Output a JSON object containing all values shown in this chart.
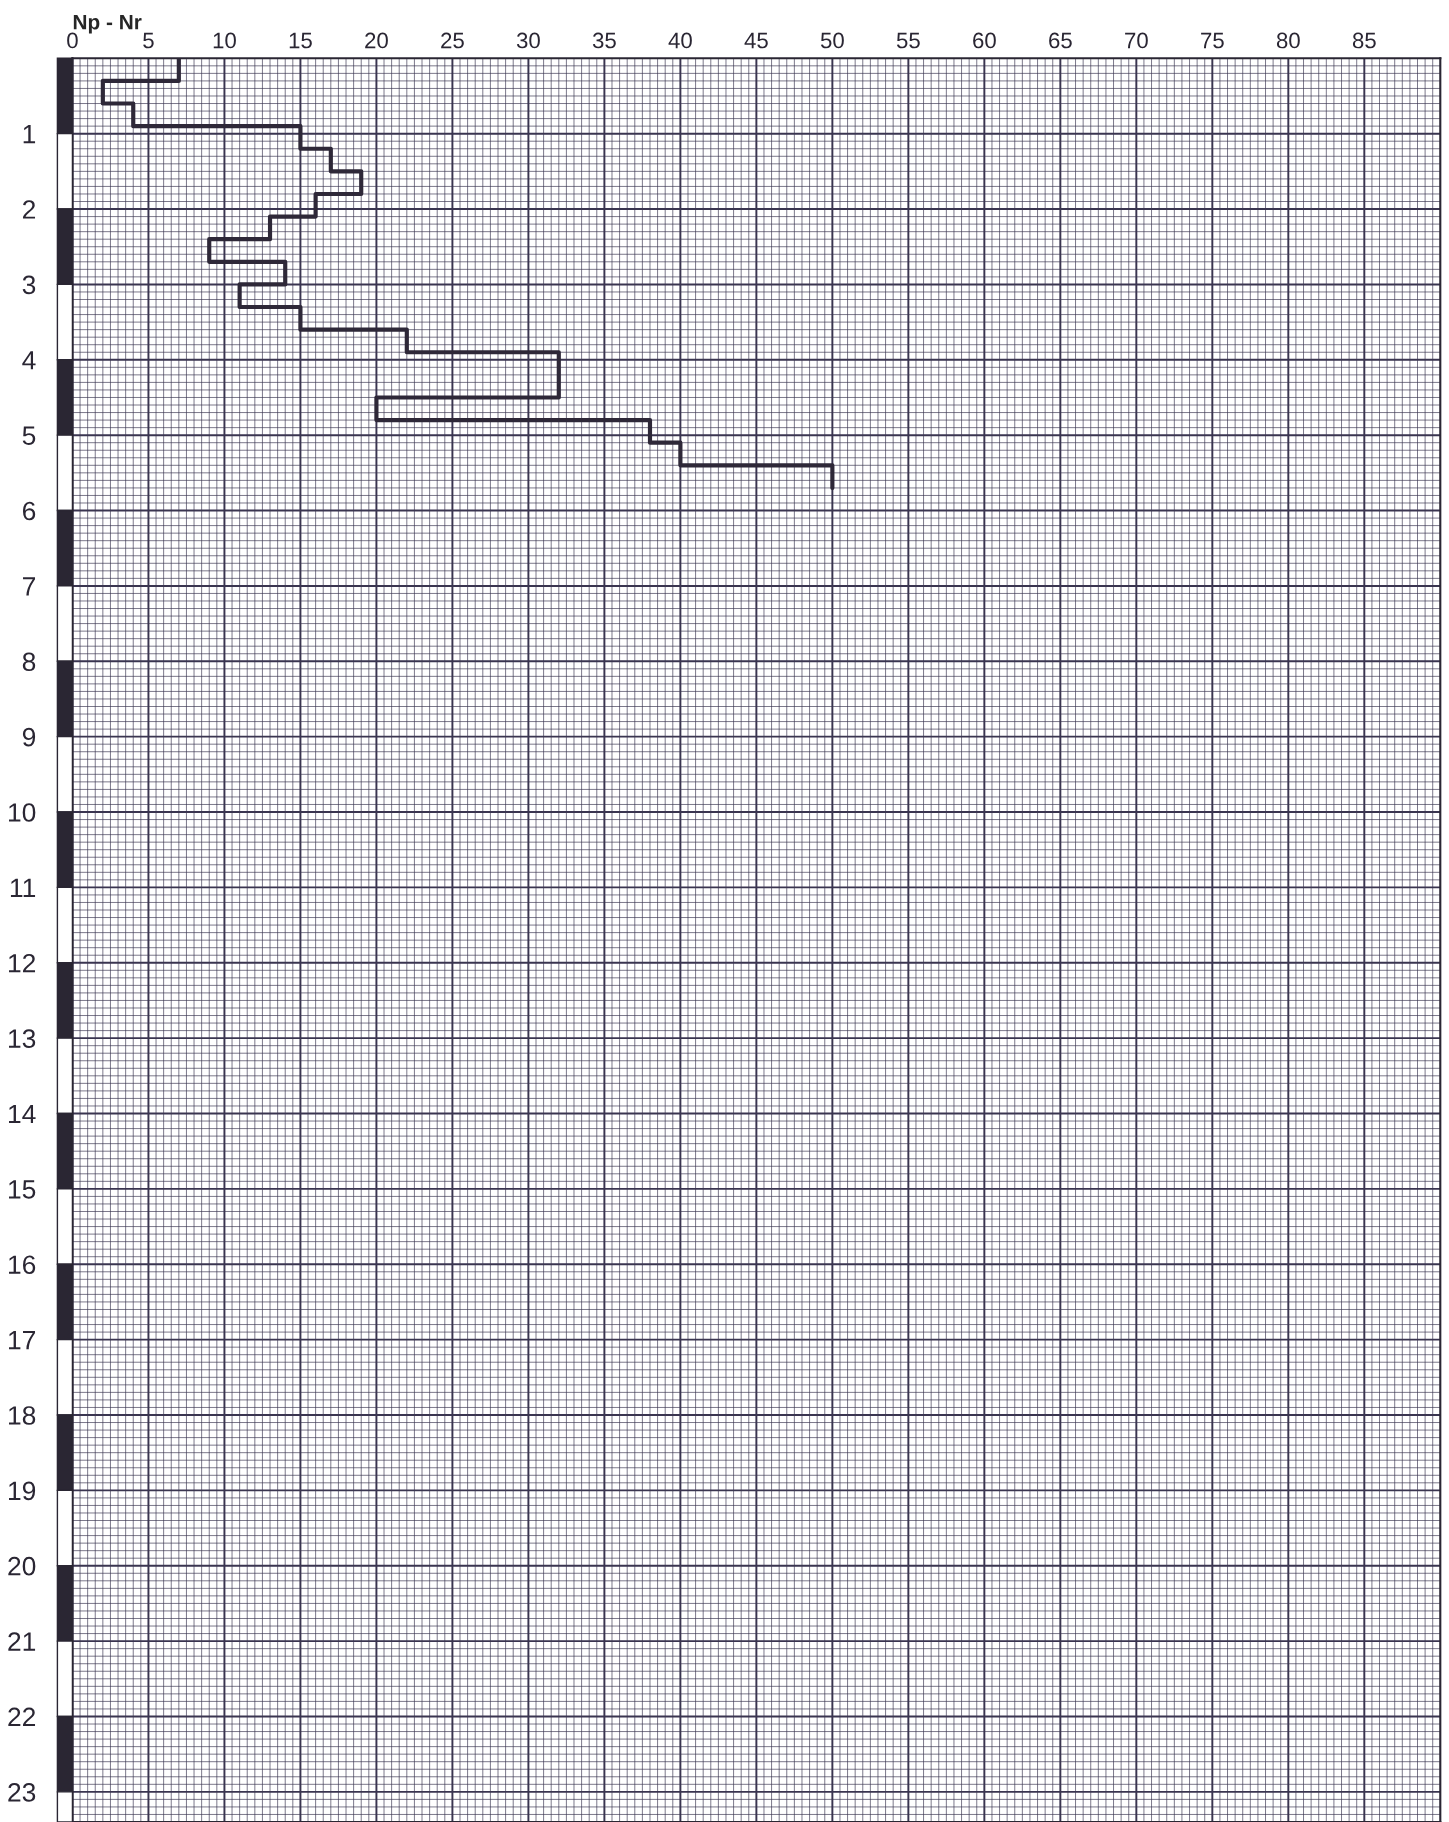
{
  "chart_data": {
    "type": "step",
    "orientation": "horizontal",
    "xlabel": "Np - Nr",
    "x": [
      0,
      0.3,
      0.6,
      0.9,
      1.2,
      1.5,
      1.8,
      2.1,
      2.4,
      2.7,
      3.0,
      3.3,
      3.6,
      3.9,
      4.2,
      4.5,
      4.8,
      5.1,
      5.4,
      5.7
    ],
    "series": [
      {
        "color": "#2e2838",
        "values": [
          7,
          2,
          4,
          15,
          17,
          19,
          16,
          13,
          9,
          14,
          11,
          15,
          22,
          32,
          32,
          20,
          38,
          40,
          50,
          50
        ]
      }
    ],
    "xlim": [
      0,
      90
    ],
    "xticks": [
      0,
      5,
      10,
      15,
      20,
      25,
      30,
      35,
      40,
      45,
      50,
      55,
      60,
      65,
      70,
      75,
      80,
      85
    ],
    "ylim": [
      23.4,
      0
    ],
    "yticks": [
      1,
      2,
      3,
      4,
      5,
      6,
      7,
      8,
      9,
      10,
      11,
      12,
      13,
      14,
      15,
      16,
      17,
      18,
      19,
      20,
      21,
      22,
      23
    ],
    "grid": true,
    "marker": "none",
    "line_style": "solid"
  }
}
